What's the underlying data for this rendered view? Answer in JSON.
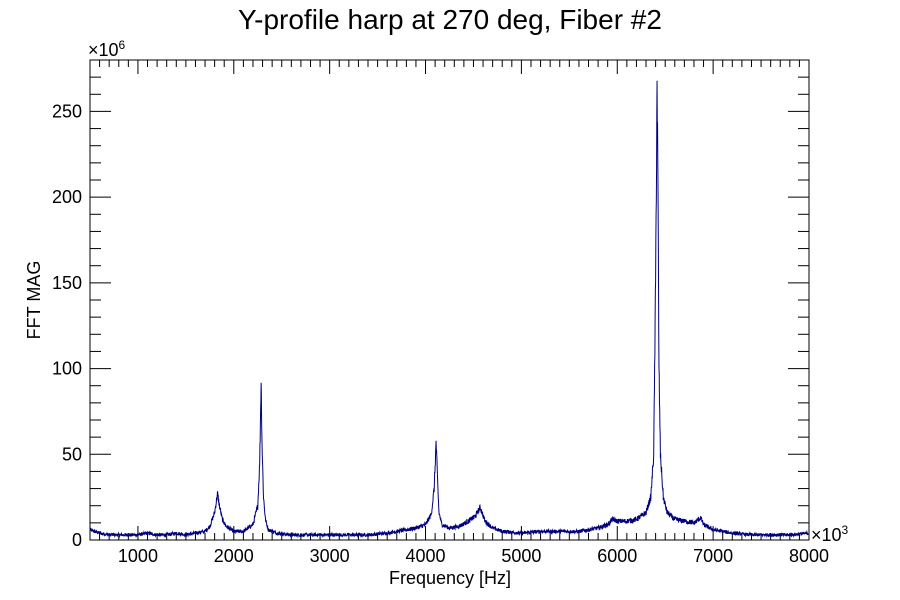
{
  "chart_data": {
    "type": "line",
    "title": "Y-profile harp at 270 deg, Fiber #2",
    "xlabel": "Frequency [Hz]",
    "ylabel": "FFT MAG",
    "x_multiplier_label": "×10",
    "x_multiplier_exp": "3",
    "y_multiplier_label": "×10",
    "y_multiplier_exp": "6",
    "xlim": [
      500,
      8000
    ],
    "ylim": [
      0,
      280
    ],
    "x_ticks": [
      1000,
      2000,
      3000,
      4000,
      5000,
      6000,
      7000,
      8000
    ],
    "y_ticks": [
      0,
      50,
      100,
      150,
      200,
      250
    ],
    "line_color": "#00007f",
    "grid": false,
    "series": [
      {
        "x": [
          500,
          600,
          700,
          800,
          900,
          1000,
          1100,
          1200,
          1300,
          1400,
          1500,
          1600,
          1700,
          1750,
          1800,
          1830,
          1850,
          1880,
          1920,
          2000,
          2100,
          2200,
          2250,
          2270,
          2285,
          2295,
          2310,
          2330,
          2360,
          2450,
          2600,
          2800,
          3000,
          3200,
          3400,
          3600,
          3700,
          3800,
          3900,
          4000,
          4060,
          4090,
          4110,
          4125,
          4140,
          4170,
          4250,
          4350,
          4450,
          4520,
          4570,
          4590,
          4620,
          4700,
          4800,
          5000,
          5200,
          5400,
          5600,
          5800,
          5900,
          5950,
          6000,
          6100,
          6200,
          6300,
          6350,
          6380,
          6400,
          6415,
          6425,
          6435,
          6450,
          6480,
          6520,
          6600,
          6700,
          6800,
          6850,
          6870,
          6900,
          7000,
          7200,
          7400,
          7600,
          7800,
          8000
        ],
        "values": [
          6,
          4,
          3,
          3,
          3,
          3,
          4,
          3,
          3,
          4,
          3,
          4,
          5,
          8,
          16,
          27,
          20,
          12,
          8,
          5,
          5,
          9,
          20,
          45,
          93,
          55,
          25,
          12,
          6,
          4,
          3,
          3,
          3,
          3,
          3,
          4,
          5,
          6,
          7,
          9,
          15,
          30,
          57,
          35,
          16,
          9,
          7,
          8,
          11,
          14,
          19,
          16,
          11,
          7,
          5,
          4,
          5,
          5,
          5,
          7,
          9,
          12,
          11,
          11,
          12,
          16,
          25,
          50,
          150,
          268,
          200,
          100,
          50,
          25,
          16,
          12,
          11,
          10,
          12,
          13,
          9,
          6,
          4,
          3,
          3,
          3,
          4
        ]
      }
    ]
  }
}
